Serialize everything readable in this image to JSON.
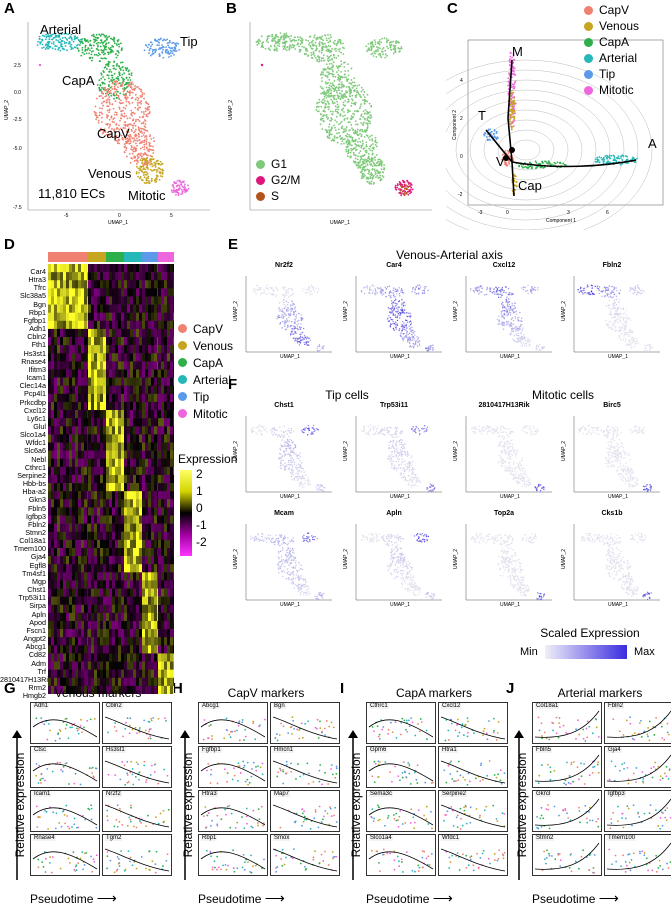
{
  "panels": {
    "A": "A",
    "B": "B",
    "C": "C",
    "D": "D",
    "E": "E",
    "F": "F",
    "G": "G",
    "H": "H",
    "I": "I",
    "J": "J"
  },
  "panelA": {
    "cluster_labels": {
      "arterial": "Arterial",
      "tip": "Tip",
      "capa": "CapA",
      "capv": "CapV",
      "venous": "Venous",
      "mitotic": "Mitotic"
    },
    "count_text": "11,810 ECs",
    "xlabel": "UMAP_1",
    "ylabel": "UMAP_2",
    "xticks": [
      "-5",
      "0",
      "5"
    ],
    "yticks": [
      "2.5",
      "0.0",
      "-2.5",
      "-5.0",
      "-7.5"
    ]
  },
  "panelB": {
    "legend": [
      "G1",
      "G2/M",
      "S"
    ],
    "colors": {
      "G1": "#7ec97a",
      "G2M": "#e0177a",
      "S": "#b5531e"
    },
    "xlabel": "UMAP_1",
    "ylabel": "UMAP_2"
  },
  "panelC": {
    "legend": [
      "CapV",
      "Venous",
      "CapA",
      "Arterial",
      "Tip",
      "Mitotic"
    ],
    "branch_labels": {
      "M": "M",
      "T": "T",
      "V": "V",
      "A": "A",
      "Cap": "Cap"
    },
    "xlabel": "Component 1",
    "ylabel": "Component 2",
    "xticks": [
      "-3",
      "0",
      "3",
      "6"
    ],
    "yticks": [
      "4",
      "2",
      "0",
      "-2"
    ]
  },
  "colors": {
    "CapV": "#f08070",
    "Venous": "#c6a520",
    "CapA": "#2db04a",
    "Arterial": "#26b8b8",
    "Tip": "#5b9ae8",
    "Mitotic": "#ee66dd"
  },
  "panelD": {
    "genes": [
      "Car4",
      "Htra3",
      "Tfrc",
      "Slc38a5",
      "Bgn",
      "Rbp1",
      "Fgfbp1",
      "Adh1",
      "Cbln2",
      "Fth1",
      "Hs3st1",
      "Rnase4",
      "Ifitm3",
      "Icam1",
      "Clec14a",
      "Pcp4l1",
      "Prkcdbp",
      "Cxcl12",
      "Ly6c1",
      "Glul",
      "Slco1a4",
      "Wfdc1",
      "Slc6a6",
      "Nebl",
      "Cthrc1",
      "Serpine2",
      "Hbb-bs",
      "Hba-a2",
      "Gkn3",
      "Fbln5",
      "Igfbp3",
      "Fbln2",
      "Stmn2",
      "Col18a1",
      "Tmem100",
      "Gja4",
      "Egfl8",
      "Tm4sf1",
      "Mgp",
      "Chst1",
      "Trp53i11",
      "Sirpa",
      "Apln",
      "Apod",
      "Fscn1",
      "Angpt2",
      "Abcg1",
      "Cd82",
      "Adm",
      "Trf",
      "2810417H13Rik",
      "Rrm2",
      "Hmgb2"
    ],
    "legend": [
      "CapV",
      "Venous",
      "CapA",
      "Arterial",
      "Tip",
      "Mitotic"
    ],
    "scale_title": "Expression",
    "scale_ticks": [
      "2",
      "1",
      "0",
      "-1",
      "-2"
    ]
  },
  "panelE": {
    "title": "Venous-Arterial axis",
    "plots": [
      "Nr2f2",
      "Car4",
      "Cxcl12",
      "Fbln2"
    ],
    "axis_x": "UMAP_1",
    "axis_y": "UMAP_2"
  },
  "panelF": {
    "title_left": "Tip cells",
    "title_right": "Mitotic cells",
    "row1": [
      "Chst1",
      "Trp53i11",
      "2810417H13Rik",
      "Birc5"
    ],
    "row2": [
      "Mcam",
      "Apln",
      "Top2a",
      "Cks1b"
    ],
    "axis_x": "UMAP_1",
    "axis_y": "UMAP_2"
  },
  "scale": {
    "title": "Scaled Expression",
    "min": "Min",
    "max": "Max"
  },
  "panelG": {
    "title": "Venous markers",
    "genes": [
      "Adh1",
      "Cbln2",
      "Ctsc",
      "Hs3st1",
      "Icam1",
      "Nr2f2",
      "Rnase4",
      "Tgm2"
    ]
  },
  "panelH": {
    "title": "CapV markers",
    "genes": [
      "Abcg1",
      "Bgn",
      "Fgfbp1",
      "Hmcn1",
      "Htra3",
      "Map7",
      "Rbp1",
      "Smox"
    ]
  },
  "panelI": {
    "title": "CapA markers",
    "genes": [
      "Cthrc1",
      "Cxcl12",
      "Gpm6",
      "Htra1",
      "Sema3c",
      "Serpine2",
      "Slco1a4",
      "Wfdc1"
    ]
  },
  "panelJ": {
    "title": "Arterial markers",
    "genes": [
      "Col18a1",
      "Fbln2",
      "Fbln5",
      "Gja4",
      "Gkn3",
      "Igfbp3",
      "Stmn2",
      "Tmem100"
    ]
  },
  "axes_labels": {
    "relative": "Relative expression",
    "pseudotime": "Pseudotime"
  }
}
